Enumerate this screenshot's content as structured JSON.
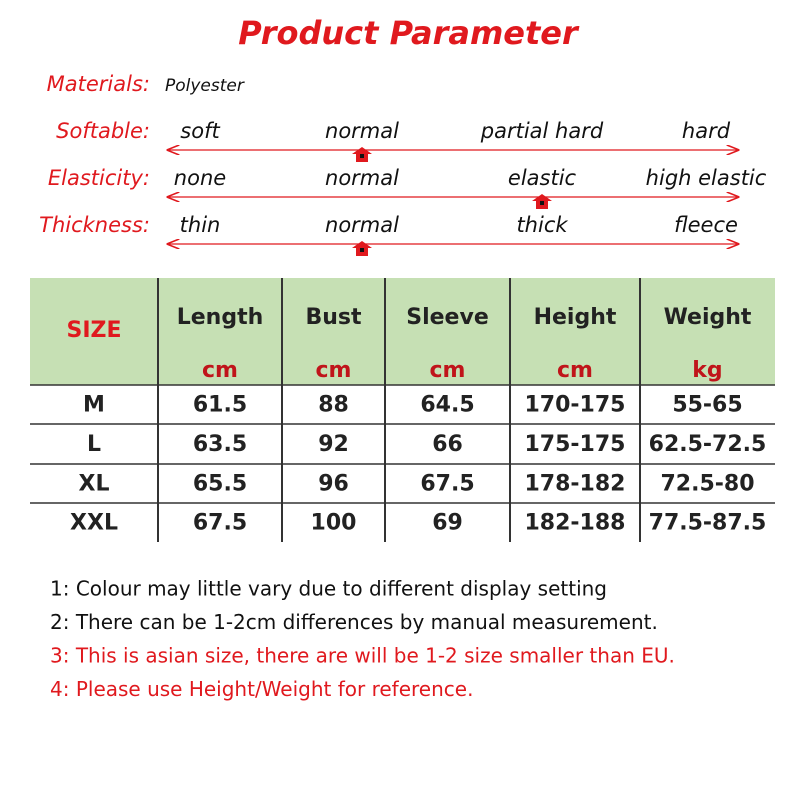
{
  "title": "Product Parameter",
  "materials": {
    "label": "Materials:",
    "value": "Polyester"
  },
  "params": [
    {
      "label": "Softable:",
      "options": [
        "soft",
        "normal",
        "partial hard",
        "hard"
      ],
      "selected": 1
    },
    {
      "label": "Elasticity:",
      "options": [
        "none",
        "normal",
        "elastic",
        "high elastic"
      ],
      "selected": 2
    },
    {
      "label": "Thickness:",
      "options": [
        "thin",
        "normal",
        "thick",
        "fleece"
      ],
      "selected": 1
    }
  ],
  "table": {
    "size_header": "SIZE",
    "columns": [
      {
        "name": "Length",
        "unit": "cm"
      },
      {
        "name": "Bust",
        "unit": "cm"
      },
      {
        "name": "Sleeve",
        "unit": "cm"
      },
      {
        "name": "Height",
        "unit": "cm"
      },
      {
        "name": "Weight",
        "unit": "kg"
      }
    ],
    "rows": [
      [
        "M",
        "61.5",
        "88",
        "64.5",
        "170-175",
        "55-65"
      ],
      [
        "L",
        "63.5",
        "92",
        "66",
        "175-175",
        "62.5-72.5"
      ],
      [
        "XL",
        "65.5",
        "96",
        "67.5",
        "178-182",
        "72.5-80"
      ],
      [
        "XXL",
        "67.5",
        "100",
        "69",
        "182-188",
        "77.5-87.5"
      ]
    ]
  },
  "notes": [
    {
      "text": "1: Colour may little vary due to different display setting",
      "color": "#111111"
    },
    {
      "text": "2: There can be 1-2cm differences by manual measurement.",
      "color": "#111111"
    },
    {
      "text": "3: This is asian size, there are will be 1-2 size smaller than EU.",
      "color": "#e0191e"
    },
    {
      "text": "4: Please use Height/Weight for reference.",
      "color": "#e0191e"
    }
  ]
}
